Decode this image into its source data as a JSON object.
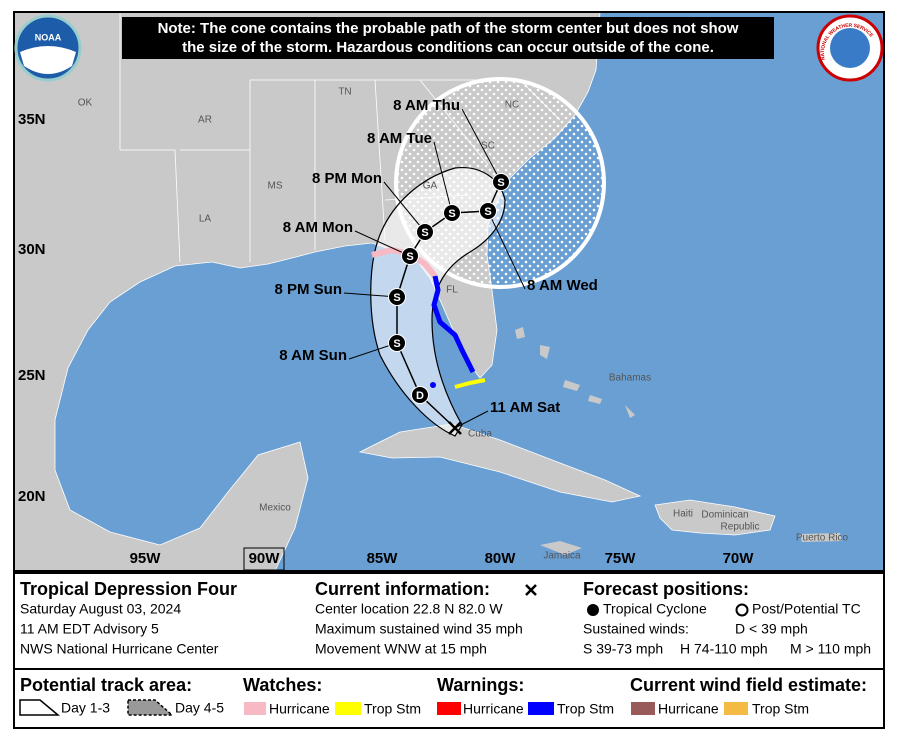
{
  "note": [
    "Note: The cone contains the probable path of the storm center but does not show",
    "the size of the storm. Hazardous conditions can occur outside of the cone."
  ],
  "logos": {
    "noaa": "NOAA",
    "nws": "NATIONAL WEATHER SERVICE"
  },
  "map": {
    "lat_labels": [
      "35N",
      "30N",
      "25N",
      "20N"
    ],
    "lon_labels": [
      "95W",
      "90W",
      "85W",
      "80W",
      "75W",
      "70W"
    ],
    "place_labels": [
      "OK",
      "AR",
      "TN",
      "NC",
      "SC",
      "GA",
      "MS",
      "LA",
      "FL",
      "Bahamas",
      "Cuba",
      "Mexico",
      "Haiti",
      "Dominican",
      "Republic",
      "Jamaica",
      "Puerto Rico"
    ]
  },
  "track": [
    {
      "time": "11 AM Sat"
    },
    {
      "symbol": "D"
    },
    {
      "time": "8 AM Sun",
      "symbol": "S"
    },
    {
      "time": "8 PM Sun",
      "symbol": "S"
    },
    {
      "time": "8 AM Mon",
      "symbol": "S"
    },
    {
      "time": "8 PM Mon",
      "symbol": "S"
    },
    {
      "time": "8 AM Tue",
      "symbol": "S"
    },
    {
      "time": "8 AM Wed",
      "symbol": "S"
    },
    {
      "time": "8 AM Thu",
      "symbol": "S"
    }
  ],
  "info": {
    "title": "Tropical Depression Four",
    "date": "Saturday August 03, 2024",
    "advisory": "11 AM EDT Advisory 5",
    "office": "NWS National Hurricane Center",
    "current_heading": "Current information:",
    "center": "Center location 22.8 N 82.0 W",
    "wind": "Maximum sustained wind 35 mph",
    "movement": "Movement WNW at 15 mph",
    "forecast_heading": "Forecast positions:",
    "tropical": "Tropical Cyclone",
    "post": "Post/Potential TC",
    "sustained": "Sustained winds:",
    "d": "D < 39 mph",
    "s": "S 39-73 mph",
    "hh": "H 74-110 mph",
    "m": "M > 110 mph"
  },
  "legend": {
    "track_area": "Potential track area:",
    "day13": "Day 1-3",
    "day45": "Day 4-5",
    "watches": "Watches:",
    "watch_hurricane": "Hurricane",
    "watch_ts": "Trop Stm",
    "warnings": "Warnings:",
    "warn_hurricane": "Hurricane",
    "warn_ts": "Trop Stm",
    "wind_field": "Current wind field estimate:",
    "wf_hurricane": "Hurricane",
    "wf_ts": "Trop Stm"
  }
}
